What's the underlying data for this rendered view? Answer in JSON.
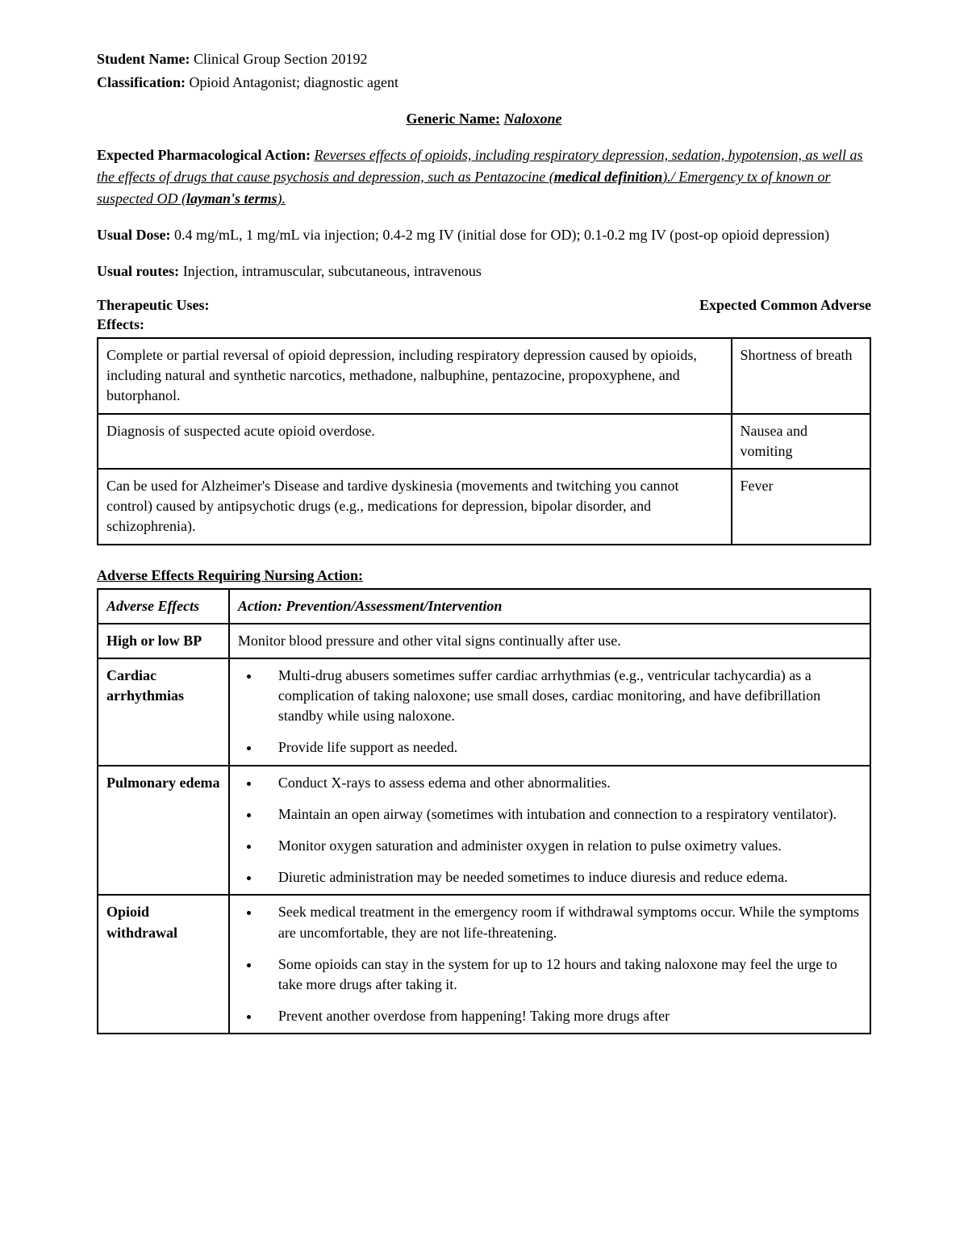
{
  "header": {
    "student_label": "Student Name:",
    "student_value": "Clinical Group Section 20192",
    "classification_label": "Classification:",
    "classification_value": "Opioid Antagonist; diagnostic agent"
  },
  "title": {
    "label": "Generic Name:",
    "value": "Naloxone"
  },
  "pharm_action": {
    "label": "Expected Pharmacological Action:",
    "text1": "Reverses effects of opioids, including respiratory depression, sedation, hypotension, as well as the effects of drugs that cause psychosis and depression, such as Pentazocine (",
    "text2": "medical definition",
    "text3": ")./ Emergency tx of known or suspected OD (",
    "text4": "layman's terms",
    "text5": ")."
  },
  "usual_dose": {
    "label": "Usual Dose:",
    "value": "0.4 mg/mL, 1 mg/mL via injection; 0.4-2 mg IV (initial dose for OD); 0.1-0.2 mg IV (post-op opioid depression)"
  },
  "usual_routes": {
    "label": "Usual routes:",
    "value": "Injection, intramuscular, subcutaneous, intravenous"
  },
  "uses_header_left": "Therapeutic Uses:",
  "uses_header_right": "Expected Common Adverse",
  "uses_header_below": "Effects:",
  "uses_table": [
    {
      "use": "Complete or partial reversal of opioid depression, including respiratory depression caused by opioids, including natural and synthetic narcotics, methadone, nalbuphine, pentazocine, propoxyphene, and butorphanol.",
      "effect": "Shortness of breath"
    },
    {
      "use": "Diagnosis of suspected acute opioid overdose.",
      "effect": "Nausea and vomiting"
    },
    {
      "use": "Can be used for Alzheimer's Disease and tardive dyskinesia (movements and twitching you cannot control) caused by antipsychotic drugs (e.g., medications for depression, bipolar disorder, and schizophrenia).",
      "effect": "Fever"
    }
  ],
  "nursing_header": "Adverse Effects Requiring Nursing Action:",
  "nursing_table": {
    "col1": "Adverse Effects",
    "col2": "Action: Prevention/Assessment/Intervention",
    "rows": [
      {
        "effect": "High or low BP",
        "actions": [
          "Monitor blood pressure and other vital signs continually after use."
        ],
        "plain": true
      },
      {
        "effect": "Cardiac arrhythmias",
        "actions": [
          "Multi-drug abusers sometimes suffer cardiac arrhythmias (e.g., ventricular tachycardia) as a complication of taking naloxone; use small doses, cardiac monitoring,  and have defibrillation standby while using naloxone.",
          "Provide life support as needed."
        ]
      },
      {
        "effect": "Pulmonary edema",
        "actions": [
          "Conduct X-rays to assess edema and other abnormalities.",
          "Maintain an open airway (sometimes with intubation and connection to a respiratory ventilator).",
          "Monitor oxygen saturation and administer oxygen in relation to pulse oximetry values.",
          "Diuretic administration may be needed sometimes to induce diuresis and reduce edema."
        ]
      },
      {
        "effect": "Opioid withdrawal",
        "actions": [
          "Seek medical treatment in the emergency room if withdrawal symptoms occur. While the symptoms are uncomfortable, they are not life-threatening.",
          "Some opioids can stay in the system for up to 12 hours and taking naloxone may feel the urge to take more drugs after taking it.",
          "Prevent another overdose from happening! Taking more drugs after"
        ]
      }
    ]
  }
}
